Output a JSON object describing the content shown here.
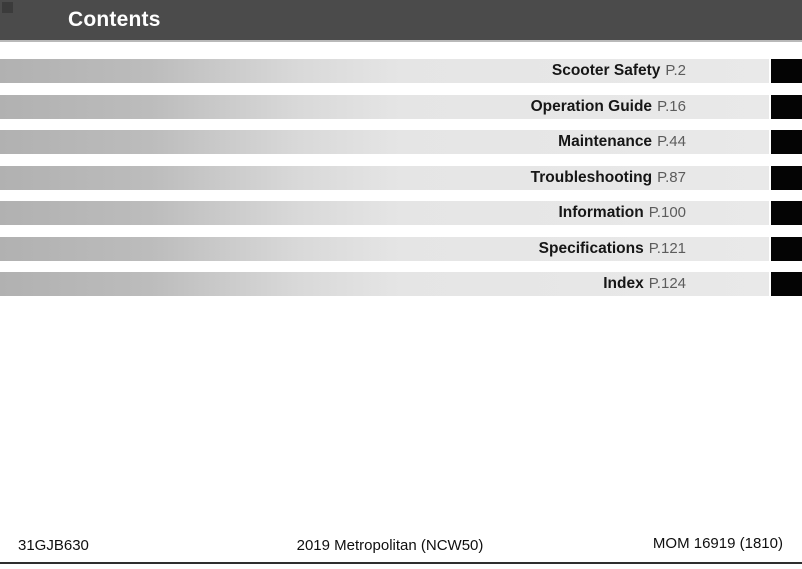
{
  "header": {
    "title": "Contents",
    "bg_color": "#4b4b4b",
    "text_color": "#ffffff"
  },
  "toc": {
    "items": [
      {
        "label": "Scooter Safety",
        "page_ref": "P.2"
      },
      {
        "label": "Operation Guide",
        "page_ref": "P.16"
      },
      {
        "label": "Maintenance",
        "page_ref": "P.44"
      },
      {
        "label": "Troubleshooting",
        "page_ref": "P.87"
      },
      {
        "label": "Information",
        "page_ref": "P.100"
      },
      {
        "label": "Specifications",
        "page_ref": "P.121"
      },
      {
        "label": "Index",
        "page_ref": "P.124"
      }
    ],
    "tab_color": "#040404",
    "bar_gradient_left": "#b1b1b1",
    "bar_gradient_right": "#e9e9e9",
    "label_color": "#161616",
    "page_ref_color": "#5c5c5c"
  },
  "footer": {
    "left": "31GJB630",
    "center": "2019 Metropolitan (NCW50)",
    "right": "MOM 16919 (1810)"
  }
}
